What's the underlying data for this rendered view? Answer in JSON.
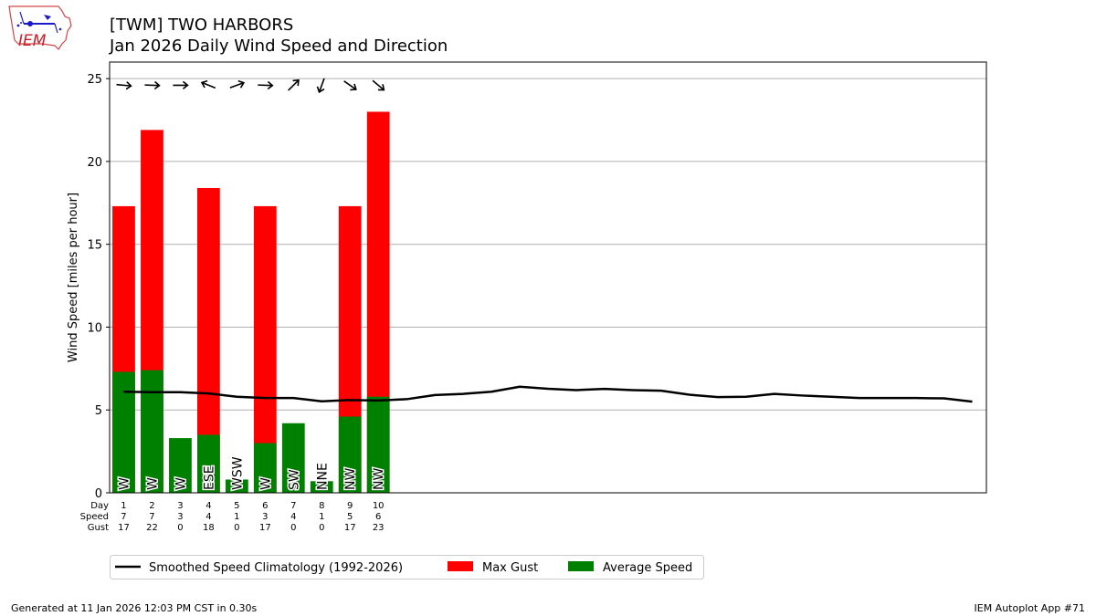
{
  "logo": {
    "text": "IEM",
    "brand_color": "#c8202a",
    "accent_color": "#1a1ac8"
  },
  "header": {
    "title": "[TWM] TWO HARBORS",
    "subtitle": "Jan 2026 Daily Wind Speed and Direction"
  },
  "footer": {
    "generated": "Generated at 11 Jan 2026 12:03 PM CST in 0.30s",
    "app": "IEM Autoplot App #71"
  },
  "chart_data": {
    "type": "bar",
    "ylabel": "Wind Speed [miles per hour]",
    "ylim": [
      0,
      26
    ],
    "xlim": [
      0.5,
      31.5
    ],
    "yticks": [
      0,
      5,
      10,
      15,
      20,
      25
    ],
    "grid": true,
    "table_row_labels": [
      "Day",
      "Speed",
      "Gust"
    ],
    "days": [
      1,
      2,
      3,
      4,
      5,
      6,
      7,
      8,
      9,
      10
    ],
    "speed_labels": [
      7,
      7,
      3,
      4,
      1,
      3,
      4,
      1,
      5,
      6
    ],
    "gust_labels": [
      17,
      22,
      0,
      18,
      0,
      17,
      0,
      0,
      17,
      23
    ],
    "series": [
      {
        "name": "Average Speed",
        "color": "#008000",
        "values": [
          7.3,
          7.4,
          3.3,
          3.5,
          0.8,
          3.0,
          4.2,
          0.7,
          4.6,
          5.8
        ]
      },
      {
        "name": "Max Gust",
        "color": "#ff0000",
        "values": [
          17.3,
          21.9,
          0,
          18.4,
          0,
          17.3,
          0,
          0,
          17.3,
          23.0
        ]
      }
    ],
    "direction_labels": [
      "W",
      "W",
      "W",
      "ESE",
      "WSW",
      "W",
      "SW",
      "NNE",
      "NW",
      "NW"
    ],
    "direction_degrees": [
      275,
      272,
      270,
      112,
      250,
      272,
      225,
      20,
      305,
      310
    ],
    "climatology": {
      "name": "Smoothed Speed Climatology (1992-2026)",
      "color": "#000000",
      "days": [
        1,
        2,
        3,
        4,
        5,
        6,
        7,
        8,
        9,
        10,
        11,
        12,
        13,
        14,
        15,
        16,
        17,
        18,
        19,
        20,
        21,
        22,
        23,
        24,
        25,
        26,
        27,
        28,
        29,
        30,
        31
      ],
      "values": [
        6.1,
        6.07,
        6.07,
        6.0,
        5.8,
        5.72,
        5.72,
        5.52,
        5.6,
        5.57,
        5.65,
        5.9,
        5.97,
        6.1,
        6.4,
        6.28,
        6.2,
        6.27,
        6.2,
        6.16,
        5.92,
        5.78,
        5.8,
        5.97,
        5.87,
        5.8,
        5.72,
        5.72,
        5.72,
        5.7,
        5.5
      ]
    },
    "legend_position": "bottom-left"
  }
}
